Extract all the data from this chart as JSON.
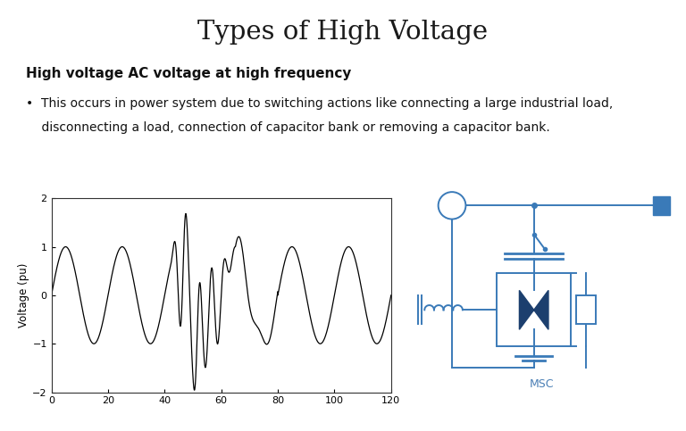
{
  "title": "Types of High Voltage",
  "subtitle_bold": "High voltage AC voltage at high frequency",
  "bullet_line1": "•  This occurs in power system due to switching actions like connecting a large industrial load,",
  "bullet_line2": "    disconnecting a load, connection of capacitor bank or removing a capacitor bank.",
  "plot_ylabel": "Voltage (pu)",
  "plot_xlim": [
    0,
    120
  ],
  "plot_ylim": [
    -2,
    2
  ],
  "plot_xticks": [
    0,
    20,
    40,
    60,
    80,
    100,
    120
  ],
  "plot_yticks": [
    -2,
    -1,
    0,
    1,
    2
  ],
  "msc_label": "MSC",
  "bg_color": "#ffffff",
  "circuit_bg": "#dde8f0",
  "circuit_blue": "#3a7ab8",
  "circuit_dark_blue": "#1c3f6e",
  "title_fontsize": 21,
  "subtitle_fontsize": 11,
  "body_fontsize": 10,
  "msc_color": "#4a7fb5"
}
